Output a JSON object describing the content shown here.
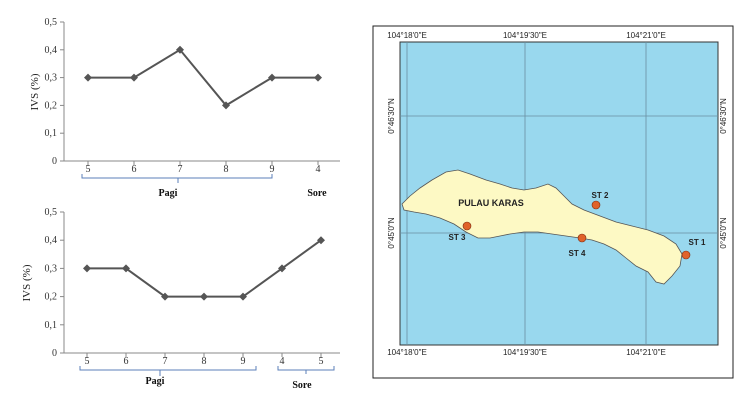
{
  "chart_data": [
    {
      "type": "line",
      "ylabel": "IVS (%)",
      "ylim": [
        0,
        0.5
      ],
      "yticks": [
        "0",
        "0,1",
        "0,2",
        "0,3",
        "0,4",
        "0,5"
      ],
      "categories": [
        "5",
        "6",
        "7",
        "8",
        "9",
        "4"
      ],
      "values": [
        0.3,
        0.3,
        0.4,
        0.2,
        0.3,
        0.3
      ],
      "groups": [
        "Pagi",
        "Sore"
      ],
      "marker_color": "#555555"
    },
    {
      "type": "line",
      "ylabel": "IVS (%)",
      "ylim": [
        0,
        0.5
      ],
      "yticks": [
        "0",
        "0,1",
        "0,2",
        "0,3",
        "0,4",
        "0,5"
      ],
      "categories": [
        "5",
        "6",
        "7",
        "8",
        "9",
        "4",
        "5"
      ],
      "values": [
        0.3,
        0.3,
        0.2,
        0.2,
        0.2,
        0.3,
        0.4
      ],
      "groups": [
        "Pagi",
        "Sore"
      ],
      "marker_color": "#555555"
    }
  ],
  "map": {
    "top_labels": [
      "104°18'0\"E",
      "104°19'30\"E",
      "104°21'0\"E"
    ],
    "bottom_labels": [
      "104°18'0\"E",
      "104°19'30\"E",
      "104°21'0\"E"
    ],
    "left_labels": [
      "0°46'30\"N",
      "0°45'0\"N"
    ],
    "right_labels": [
      "0°46'30\"N",
      "0°45'0\"N"
    ],
    "island_name": "PULAU KARAS",
    "stations": [
      "ST 1",
      "ST 2",
      "ST 3",
      "ST 4"
    ],
    "sea_color": "#99d8ee",
    "land_color": "#fdf9c4",
    "station_color": "#e0622a"
  }
}
